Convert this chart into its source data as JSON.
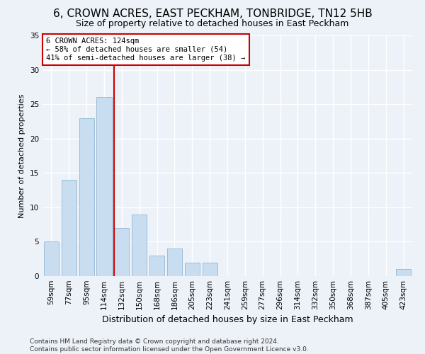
{
  "title": "6, CROWN ACRES, EAST PECKHAM, TONBRIDGE, TN12 5HB",
  "subtitle": "Size of property relative to detached houses in East Peckham",
  "xlabel": "Distribution of detached houses by size in East Peckham",
  "ylabel": "Number of detached properties",
  "categories": [
    "59sqm",
    "77sqm",
    "95sqm",
    "114sqm",
    "132sqm",
    "150sqm",
    "168sqm",
    "186sqm",
    "205sqm",
    "223sqm",
    "241sqm",
    "259sqm",
    "277sqm",
    "296sqm",
    "314sqm",
    "332sqm",
    "350sqm",
    "368sqm",
    "387sqm",
    "405sqm",
    "423sqm"
  ],
  "values": [
    5,
    14,
    23,
    26,
    7,
    9,
    3,
    4,
    2,
    2,
    0,
    0,
    0,
    0,
    0,
    0,
    0,
    0,
    0,
    0,
    1
  ],
  "bar_color": "#c8ddf0",
  "bar_edge_color": "#9bbdd9",
  "background_color": "#edf2f9",
  "grid_color": "#ffffff",
  "vline_color": "#cc0000",
  "annotation_text": "6 CROWN ACRES: 124sqm\n← 58% of detached houses are smaller (54)\n41% of semi-detached houses are larger (38) →",
  "annotation_box_color": "#ffffff",
  "annotation_box_edge_color": "#cc0000",
  "footnote": "Contains HM Land Registry data © Crown copyright and database right 2024.\nContains public sector information licensed under the Open Government Licence v3.0.",
  "ylim": [
    0,
    35
  ],
  "title_fontsize": 11,
  "subtitle_fontsize": 9,
  "xlabel_fontsize": 9,
  "ylabel_fontsize": 8,
  "tick_fontsize": 7.5,
  "footnote_fontsize": 6.5
}
